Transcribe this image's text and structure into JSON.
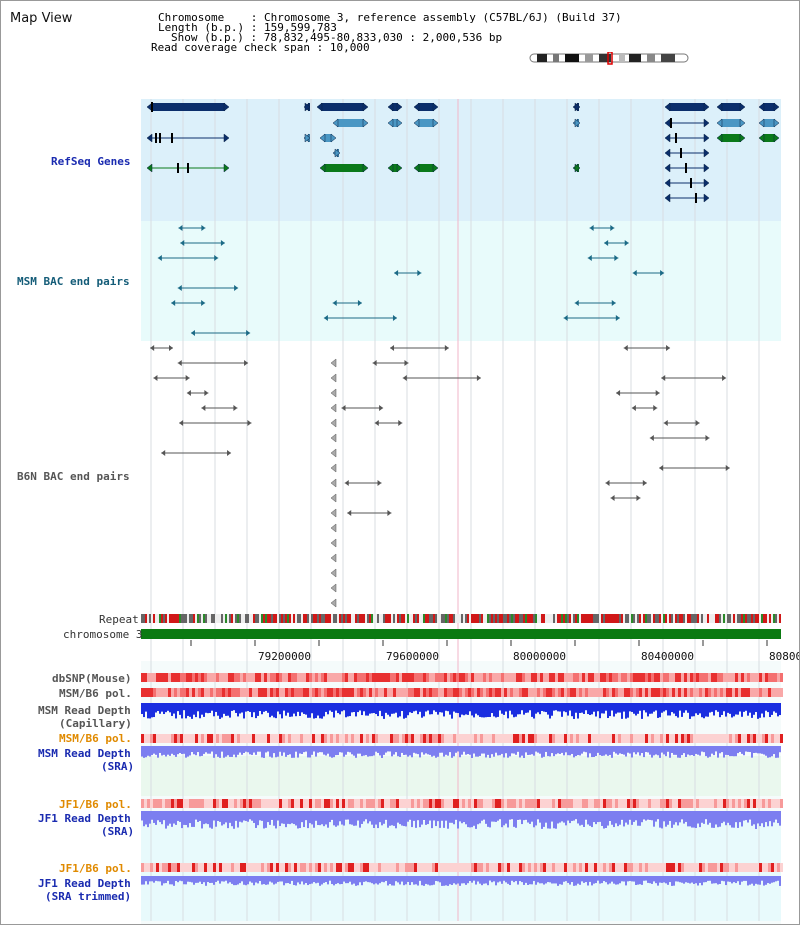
{
  "title": "Map View",
  "header": {
    "chromosome_key": "Chromosome",
    "chromosome_val": "Chromosome 3, reference assembly (C57BL/6J) (Build 37)",
    "length_key": "Length (b.p.)",
    "length_val": "159,599,783",
    "show_key": "Show (b.p.)",
    "show_val": "78,832,495-80,833,030 : 2,000,536 bp",
    "coverage_key": "Read coverage check span",
    "coverage_val": "10,000"
  },
  "tracks": {
    "refseq": "RefSeq Genes",
    "msm_bac": "MSM BAC end pairs",
    "b6n_bac": "B6N BAC end pairs",
    "repeat": "Repeat",
    "chromosome": "chromosome 3",
    "dbsnp": "dbSNP(Mouse)",
    "msm_b6_pol": "MSM/B6 pol.",
    "msm_depth_cap_1": "MSM Read Depth",
    "msm_depth_cap_2": "(Capillary)",
    "msm_b6_pol_2": "MSM/B6 pol.",
    "msm_depth_sra_1": "MSM Read Depth",
    "msm_depth_sra_2": "(SRA)",
    "jf1_b6_pol": "JF1/B6 pol.",
    "jf1_depth_sra_1": "JF1 Read Depth",
    "jf1_depth_sra_2": "(SRA)",
    "jf1_b6_pol_2": "JF1/B6 pol.",
    "jf1_depth_trim_1": "JF1 Read Depth",
    "jf1_depth_trim_2": "(SRA trimmed)"
  },
  "axis": {
    "ticks": [
      "79200000",
      "79600000",
      "80000000",
      "80400000",
      "80800"
    ]
  },
  "colors": {
    "refseq_bg": "#dcf0fa",
    "bac_bg": "#e8fbfb",
    "gene_navy": "#0b2e6b",
    "gene_steel": "#4a97c4",
    "gene_green": "#0a7a1a",
    "bac_teal": "#1b6a86",
    "bac_gray": "#555555",
    "chromosome_green": "#0b7a12",
    "depth_blue": "#1a2ee0",
    "depth_violet": "#7c7ef0"
  }
}
